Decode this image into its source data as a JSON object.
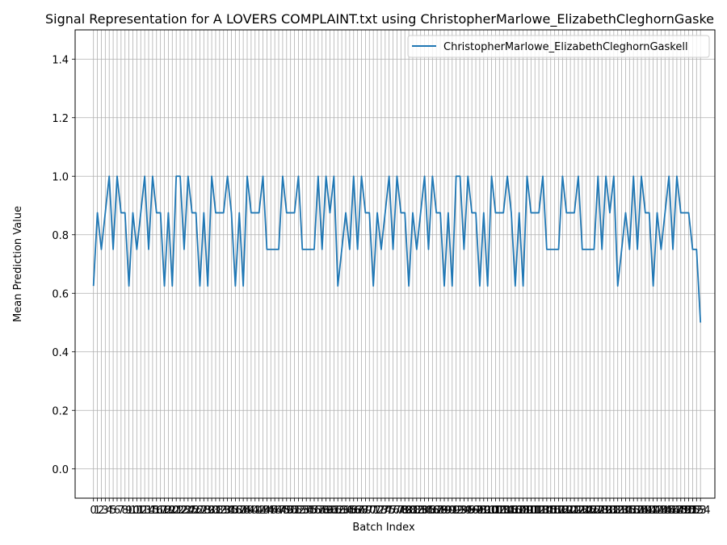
{
  "chart_data": {
    "type": "line",
    "title": "Signal Representation for A LOVERS COMPLAINT.txt using ChristopherMarlowe_ElizabethCleghornGaske",
    "xlabel": "Batch Index",
    "ylabel": "Mean Prediction Value",
    "xlim": [
      -4.65,
      157.65
    ],
    "ylim": [
      -0.1,
      1.5
    ],
    "yticks": [
      0.0,
      0.2,
      0.4,
      0.6,
      0.8,
      1.0,
      1.2,
      1.4
    ],
    "ytick_labels": [
      "0.0",
      "0.2",
      "0.4",
      "0.6",
      "0.8",
      "1.0",
      "1.2",
      "1.4"
    ],
    "x_tick_step": 1,
    "grid": true,
    "legend_position": "upper-right",
    "colors": {
      "series": "#1f77b4",
      "grid": "#b0b0b0",
      "axes": "#000000",
      "background": "#ffffff"
    },
    "series": [
      {
        "name": "ChristopherMarlowe_ElizabethCleghornGaskell",
        "values": [
          0.625,
          0.875,
          0.75,
          0.875,
          1.0,
          0.75,
          1.0,
          0.875,
          0.875,
          0.625,
          0.875,
          0.75,
          0.875,
          1.0,
          0.75,
          1.0,
          0.875,
          0.875,
          0.625,
          0.875,
          0.625,
          1.0,
          1.0,
          0.75,
          1.0,
          0.875,
          0.875,
          0.625,
          0.875,
          0.625,
          1.0,
          0.875,
          0.875,
          0.875,
          1.0,
          0.875,
          0.625,
          0.875,
          0.625,
          1.0,
          0.875,
          0.875,
          0.875,
          1.0,
          0.75,
          0.75,
          0.75,
          0.75,
          1.0,
          0.875,
          0.875,
          0.875,
          1.0,
          0.75,
          0.75,
          0.75,
          0.75,
          1.0,
          0.75,
          1.0,
          0.875,
          1.0,
          0.625,
          0.75,
          0.875,
          0.75,
          1.0,
          0.75,
          1.0,
          0.875,
          0.875,
          0.625,
          0.875,
          0.75,
          0.875,
          1.0,
          0.75,
          1.0,
          0.875,
          0.875,
          0.625,
          0.875,
          0.75,
          0.875,
          1.0,
          0.75,
          1.0,
          0.875,
          0.875,
          0.625,
          0.875,
          0.625,
          1.0,
          1.0,
          0.75,
          1.0,
          0.875,
          0.875,
          0.625,
          0.875,
          0.625,
          1.0,
          0.875,
          0.875,
          0.875,
          1.0,
          0.875,
          0.625,
          0.875,
          0.625,
          1.0,
          0.875,
          0.875,
          0.875,
          1.0,
          0.75,
          0.75,
          0.75,
          0.75,
          1.0,
          0.875,
          0.875,
          0.875,
          1.0,
          0.75,
          0.75,
          0.75,
          0.75,
          1.0,
          0.75,
          1.0,
          0.875,
          1.0,
          0.625,
          0.75,
          0.875,
          0.75,
          1.0,
          0.75,
          1.0,
          0.875,
          0.875,
          0.625,
          0.875,
          0.75,
          0.875,
          1.0,
          0.75,
          1.0,
          0.875,
          0.875,
          0.875,
          0.75,
          0.75,
          0.5
        ]
      }
    ]
  }
}
